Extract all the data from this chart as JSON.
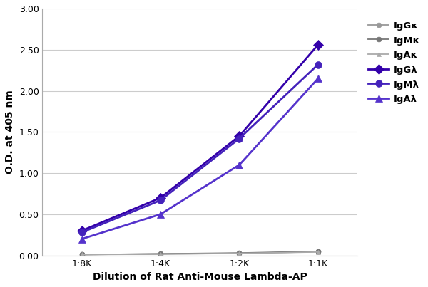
{
  "x_labels": [
    "1:8K",
    "1:4K",
    "1:2K",
    "1:1K"
  ],
  "x_values": [
    0,
    1,
    2,
    3
  ],
  "series": [
    {
      "label": "IgGκ",
      "values": [
        0.012,
        0.018,
        0.025,
        0.045
      ],
      "color": "#999999",
      "marker": "o",
      "linestyle": "-",
      "linewidth": 1.3,
      "markersize": 5,
      "zorder": 2,
      "markeredge": "#999999"
    },
    {
      "label": "IgMκ",
      "values": [
        0.01,
        0.02,
        0.03,
        0.05
      ],
      "color": "#777777",
      "marker": "o",
      "linestyle": "-",
      "linewidth": 1.3,
      "markersize": 5,
      "zorder": 2,
      "markeredge": "#777777"
    },
    {
      "label": "IgAκ",
      "values": [
        0.01,
        0.016,
        0.025,
        0.042
      ],
      "color": "#aaaaaa",
      "marker": "^",
      "linestyle": "-",
      "linewidth": 1.3,
      "markersize": 5,
      "zorder": 2,
      "markeredge": "#aaaaaa"
    },
    {
      "label": "IgGλ",
      "values": [
        0.3,
        0.7,
        1.45,
        2.56
      ],
      "color": "#3300aa",
      "marker": "D",
      "linestyle": "-",
      "linewidth": 2.0,
      "markersize": 7,
      "zorder": 3,
      "markeredge": "#3300aa"
    },
    {
      "label": "IgMλ",
      "values": [
        0.28,
        0.67,
        1.42,
        2.32
      ],
      "color": "#4422bb",
      "marker": "o",
      "linestyle": "-",
      "linewidth": 2.0,
      "markersize": 7,
      "zorder": 3,
      "markeredge": "#4422bb"
    },
    {
      "label": "IgAλ",
      "values": [
        0.2,
        0.5,
        1.1,
        2.15
      ],
      "color": "#5533cc",
      "marker": "^",
      "linestyle": "-",
      "linewidth": 2.0,
      "markersize": 7,
      "zorder": 3,
      "markeredge": "#5533cc"
    }
  ],
  "xlabel": "Dilution of Rat Anti-Mouse Lambda-AP",
  "ylabel": "O.D. at 405 nm",
  "ylim": [
    0.0,
    3.0
  ],
  "yticks": [
    0.0,
    0.5,
    1.0,
    1.5,
    2.0,
    2.5,
    3.0
  ],
  "background_color": "#ffffff",
  "grid_color": "#cccccc",
  "legend_fontsize": 9.5,
  "axis_label_fontsize": 10,
  "tick_fontsize": 9,
  "fig_width": 6.0,
  "fig_height": 4.03,
  "dpi": 100
}
